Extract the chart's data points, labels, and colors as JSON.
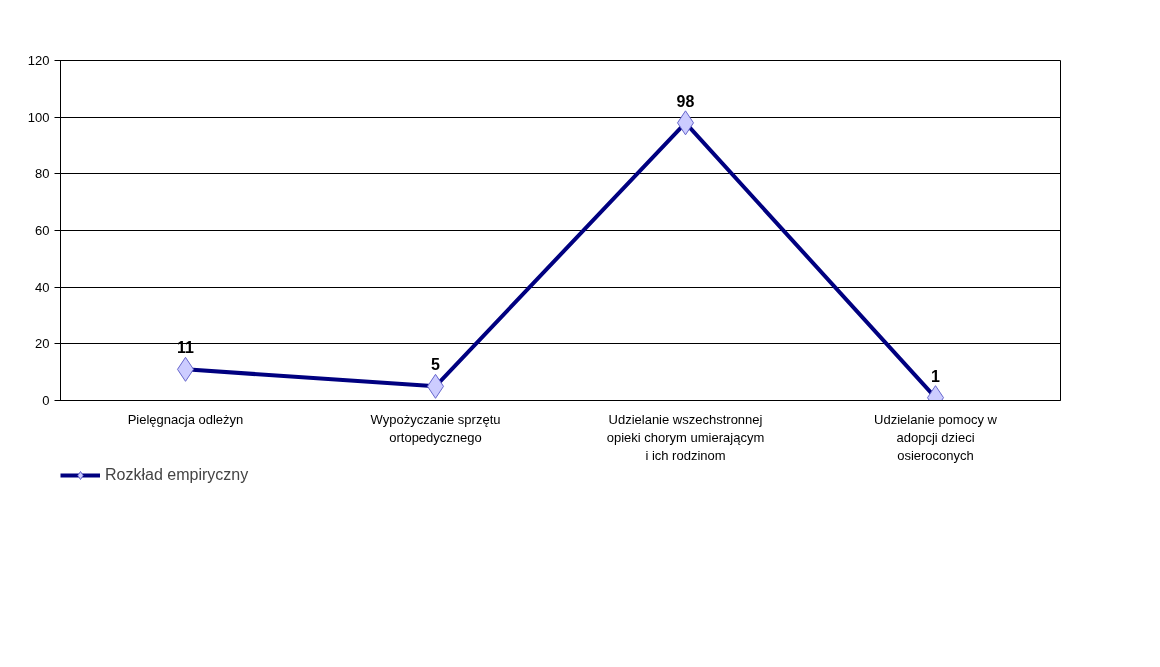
{
  "chart_data": {
    "type": "line",
    "categories": [
      "Pielęgnacja odleżyn",
      "Wypożyczanie sprzętu ortopedycznego",
      "Udzielanie wszechstronnej opieki chorym umierającym i ich rodzinom",
      "Udzielanie pomocy w adopcji dzieci osieroconych"
    ],
    "series": [
      {
        "name": "Rozkład empiryczny",
        "color": "#000080",
        "values": [
          11,
          5,
          98,
          1
        ]
      }
    ],
    "ylim": [
      0,
      120
    ],
    "yticks": [
      0,
      20,
      40,
      60,
      80,
      100,
      120
    ],
    "grid": "y",
    "legend": "bottom left",
    "marker": "diamond",
    "line_style": "solid",
    "data_labels": true
  }
}
